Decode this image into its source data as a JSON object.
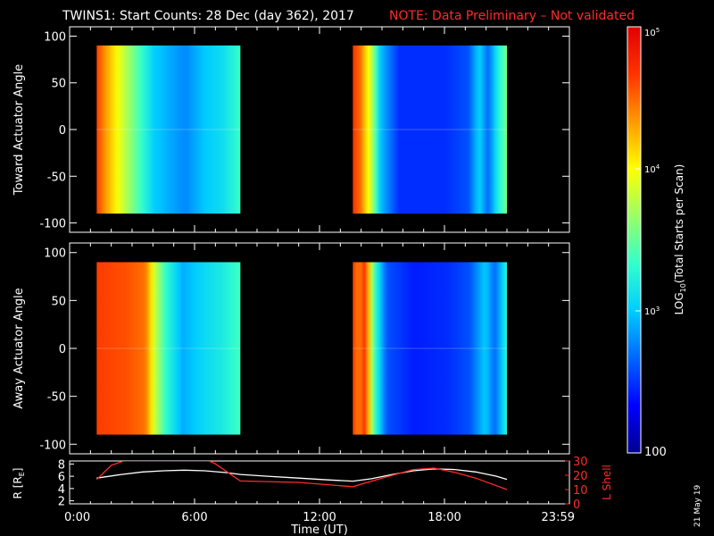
{
  "header": {
    "title": "TWINS1: Start Counts: 28 Dec (day 362), 2017",
    "note": "NOTE: Data Preliminary – Not validated",
    "note_color": "#ff2a2a"
  },
  "side_stamp": "21 May 19",
  "chart_data": [
    {
      "type": "heatmap",
      "panel": "top",
      "ylabel": "Toward Actuator Angle",
      "yticks": [
        "100",
        "50",
        "0",
        "-50",
        "-100"
      ],
      "ylim": [
        -110,
        110
      ],
      "xlim_hours": [
        0,
        24
      ],
      "data_blocks": [
        {
          "x_start_h": 1.3,
          "x_end_h": 8.2,
          "y_min": -90,
          "y_max": 90,
          "profile": [
            [
              0.0,
              0.88
            ],
            [
              0.06,
              0.78
            ],
            [
              0.16,
              0.64
            ],
            [
              0.3,
              0.46
            ],
            [
              0.4,
              0.34
            ],
            [
              0.5,
              0.3
            ],
            [
              0.62,
              0.26
            ],
            [
              0.75,
              0.33
            ],
            [
              0.88,
              0.37
            ],
            [
              1.0,
              0.45
            ]
          ]
        },
        {
          "x_start_h": 13.6,
          "x_end_h": 21.0,
          "y_min": -90,
          "y_max": 90,
          "profile": [
            [
              0.0,
              0.9
            ],
            [
              0.05,
              0.82
            ],
            [
              0.12,
              0.6
            ],
            [
              0.18,
              0.32
            ],
            [
              0.3,
              0.16
            ],
            [
              0.6,
              0.16
            ],
            [
              0.75,
              0.2
            ],
            [
              0.82,
              0.35
            ],
            [
              0.88,
              0.22
            ],
            [
              0.94,
              0.4
            ],
            [
              1.0,
              0.52
            ]
          ]
        }
      ]
    },
    {
      "type": "heatmap",
      "panel": "bottom",
      "ylabel": "Away Actuator Angle",
      "yticks": [
        "100",
        "50",
        "0",
        "-50",
        "-100"
      ],
      "ylim": [
        -110,
        110
      ],
      "xlim_hours": [
        0,
        24
      ],
      "data_blocks": [
        {
          "x_start_h": 1.3,
          "x_end_h": 8.2,
          "y_min": -90,
          "y_max": 90,
          "profile": [
            [
              0.0,
              0.88
            ],
            [
              0.2,
              0.86
            ],
            [
              0.34,
              0.82
            ],
            [
              0.4,
              0.62
            ],
            [
              0.48,
              0.44
            ],
            [
              0.6,
              0.3
            ],
            [
              0.75,
              0.36
            ],
            [
              0.88,
              0.4
            ],
            [
              1.0,
              0.46
            ]
          ]
        },
        {
          "x_start_h": 13.6,
          "x_end_h": 21.0,
          "y_min": -90,
          "y_max": 90,
          "profile": [
            [
              0.0,
              0.88
            ],
            [
              0.04,
              0.8
            ],
            [
              0.08,
              0.9
            ],
            [
              0.14,
              0.46
            ],
            [
              0.22,
              0.2
            ],
            [
              0.4,
              0.14
            ],
            [
              0.62,
              0.16
            ],
            [
              0.76,
              0.2
            ],
            [
              0.86,
              0.34
            ],
            [
              0.92,
              0.22
            ],
            [
              1.0,
              0.42
            ]
          ]
        }
      ]
    },
    {
      "type": "line",
      "panel": "orbit",
      "xlabel": "Time (UT)",
      "xticks": [
        "0:00",
        "6:00",
        "12:00",
        "18:00",
        "23:59"
      ],
      "xlim_hours": [
        0,
        24
      ],
      "left_axis": {
        "label": "R [RE]",
        "label_prefix": "R [R",
        "label_sub": "E",
        "label_suffix": "]",
        "ticks": [
          "8",
          "6",
          "4",
          "2"
        ],
        "ylim": [
          1.5,
          8.5
        ],
        "color": "#ffffff"
      },
      "right_axis": {
        "label": "L Shell",
        "ticks": [
          "30",
          "20",
          "10",
          "0"
        ],
        "ylim": [
          0,
          30
        ],
        "color": "#ff2a2a"
      },
      "series": [
        {
          "axis": "left",
          "color": "#ffffff",
          "x": [
            1.3,
            2.5,
            3.5,
            4.5,
            5.5,
            6.5,
            7.5,
            8.2,
            9.5,
            11.0,
            12.5,
            13.6,
            14.5,
            15.5,
            16.5,
            17.5,
            18.5,
            19.5,
            20.5,
            21.0
          ],
          "y": [
            5.7,
            6.3,
            6.7,
            6.9,
            7.0,
            6.9,
            6.6,
            6.3,
            6.0,
            5.7,
            5.4,
            5.2,
            5.6,
            6.3,
            6.9,
            7.2,
            7.1,
            6.7,
            6.0,
            5.5
          ]
        },
        {
          "axis": "right",
          "color": "#ff2a2a",
          "x": [
            1.3,
            2.0,
            2.6,
            6.7,
            7.0,
            8.2,
            11.0,
            13.6,
            15.0,
            16.5,
            17.5,
            18.5,
            19.5,
            21.0
          ],
          "y": [
            17,
            27,
            30,
            30,
            28,
            16,
            15,
            12,
            18,
            24,
            25,
            22,
            18,
            10
          ]
        }
      ]
    }
  ],
  "colorbar": {
    "label_prefix": "LOG",
    "label_sub": "10",
    "label_suffix": "(Total Starts per Scan)",
    "ticks": [
      {
        "label": "10",
        "sup": "5",
        "log": 5
      },
      {
        "label": "10",
        "sup": "4",
        "log": 4
      },
      {
        "label": "10",
        "sup": "3",
        "log": 3
      },
      {
        "label": "100",
        "sup": "",
        "log": 2
      }
    ],
    "range_log": [
      2,
      5
    ],
    "colors": [
      "#00008f",
      "#0000ff",
      "#0066ff",
      "#00ccff",
      "#33ffcc",
      "#99ff66",
      "#ffff00",
      "#ff9900",
      "#ff3300",
      "#e00000"
    ]
  }
}
